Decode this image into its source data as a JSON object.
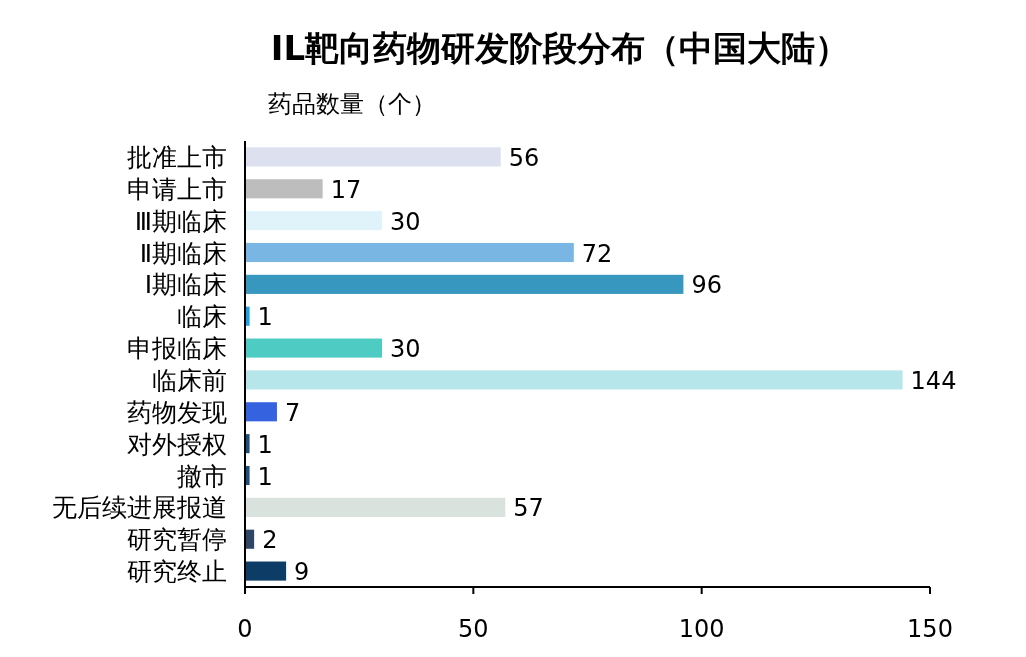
{
  "chart_data": {
    "type": "bar",
    "orientation": "horizontal",
    "title": "IL靶向药物研发阶段分布（中国大陆）",
    "xlabel": "药品数量（个）",
    "categories": [
      "批准上市",
      "申请上市",
      "Ⅲ期临床",
      "Ⅱ期临床",
      "Ⅰ期临床",
      "临床",
      "申报临床",
      "临床前",
      "药物发现",
      "对外授权",
      "撤市",
      "无后续进展报道",
      "研究暂停",
      "研究终止"
    ],
    "values": [
      56,
      17,
      30,
      72,
      96,
      1,
      30,
      144,
      7,
      1,
      1,
      57,
      2,
      9
    ],
    "colors": [
      "#dde0ee",
      "#bdbdbd",
      "#e0f3fb",
      "#7ab6e3",
      "#3797bf",
      "#1fa0e0",
      "#4ecbc2",
      "#b6e6ea",
      "#3563e0",
      "#1d4f7a",
      "#1d4f7a",
      "#d9e2dc",
      "#2f4565",
      "#0d3d66"
    ],
    "xlim": [
      0,
      150
    ],
    "xticks": [
      0,
      50,
      100,
      150
    ],
    "data_labels": true,
    "grid": false
  }
}
